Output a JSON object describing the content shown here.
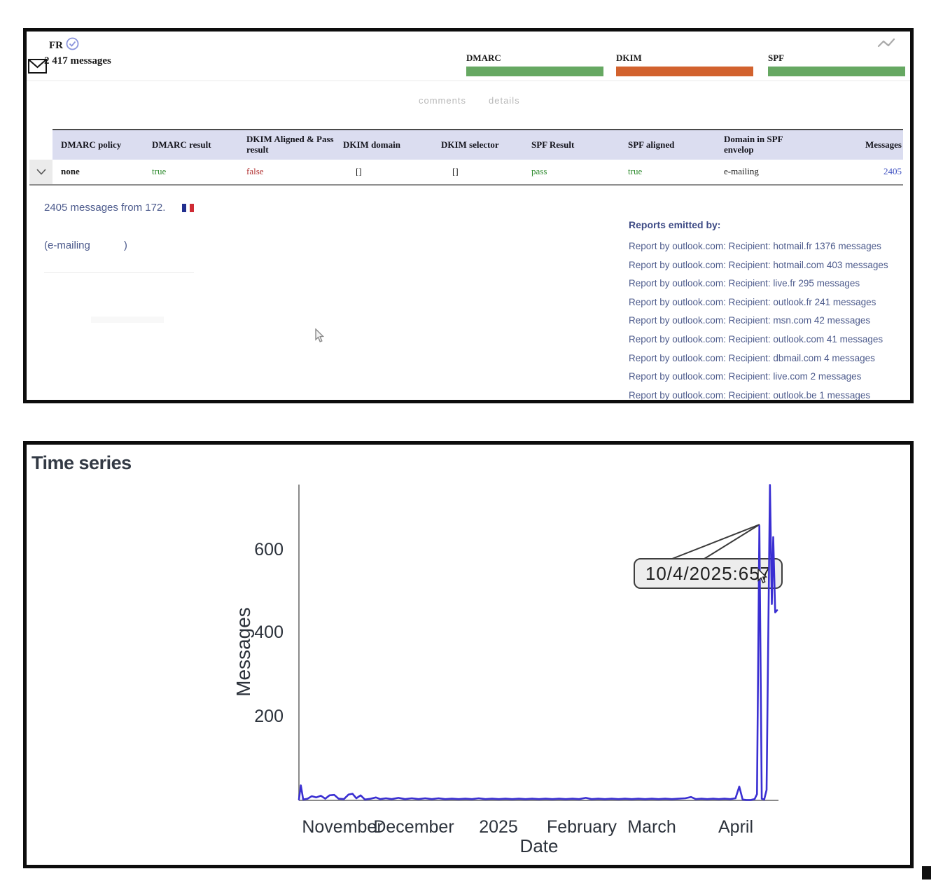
{
  "summary": {
    "country": "FR",
    "messages_total": "2 417 messages",
    "auth_bars": [
      {
        "label": "DMARC",
        "color": "#66a862"
      },
      {
        "label": "DKIM",
        "color": "#d2622e"
      },
      {
        "label": "SPF",
        "color": "#66a862"
      }
    ]
  },
  "tabs": {
    "comments": "comments",
    "details": "details"
  },
  "table": {
    "headers": [
      "DMARC policy",
      "DMARC result",
      "DKIM Aligned & Pass result",
      "DKIM domain",
      "DKIM selector",
      "SPF Result",
      "SPF aligned",
      "Domain in SPF envelop",
      "Messages"
    ],
    "row": {
      "dmarc_policy": "none",
      "dmarc_result": "true",
      "dkim_aligned_pass": "false",
      "dkim_domain": "[]",
      "dkim_selector": "[]",
      "spf_result": "pass",
      "spf_aligned": "true",
      "spf_envelope_domain": "e-mailing",
      "messages": "2405"
    }
  },
  "detail": {
    "messages_from": "2405 messages from 172.",
    "sender_prefix": "(e-mailing",
    "sender_suffix": ")",
    "reports_title": "Reports emitted by:",
    "reports": [
      "Report by outlook.com: Recipient: hotmail.fr 1376 messages",
      "Report by outlook.com: Recipient: hotmail.com 403 messages",
      "Report by outlook.com: Recipient: live.fr 295 messages",
      "Report by outlook.com: Recipient: outlook.fr 241 messages",
      "Report by outlook.com: Recipient: msn.com 42 messages",
      "Report by outlook.com: Recipient: outlook.com 41 messages",
      "Report by outlook.com: Recipient: dbmail.com 4 messages",
      "Report by outlook.com: Recipient: live.com 2 messages",
      "Report by outlook.com: Recipient: outlook.be 1 messages"
    ]
  },
  "colors": {
    "pass_green": "#2e8b2e",
    "fail_red": "#b23131",
    "bar_green": "#66a862",
    "bar_orange": "#d2622e",
    "link_blue": "#3f51c1",
    "detail_text": "#4c5a8c",
    "header_bg": "#dbddf0",
    "line_blue": "#3a2fd2"
  },
  "chart_data": {
    "type": "line",
    "title": "Time series",
    "xlabel": "Date",
    "ylabel": "Messages",
    "x_tick_labels": [
      "November",
      "December",
      "2025",
      "February",
      "March",
      "April"
    ],
    "ytick_labels": [
      "600",
      "400",
      "200"
    ],
    "yticks": [
      600,
      400,
      200
    ],
    "ylim": [
      0,
      760
    ],
    "grid": false,
    "legend": "none",
    "line_color": "#3a2fd2",
    "tooltip": {
      "text": "10/4/2025:657",
      "date": "10/4/2025",
      "value": 657
    },
    "points": [
      [
        0.0,
        2
      ],
      [
        0.004,
        36
      ],
      [
        0.009,
        2
      ],
      [
        0.018,
        4
      ],
      [
        0.027,
        10
      ],
      [
        0.036,
        7
      ],
      [
        0.046,
        11
      ],
      [
        0.055,
        4
      ],
      [
        0.064,
        12
      ],
      [
        0.074,
        13
      ],
      [
        0.083,
        4
      ],
      [
        0.094,
        3
      ],
      [
        0.104,
        14
      ],
      [
        0.112,
        16
      ],
      [
        0.12,
        5
      ],
      [
        0.129,
        12
      ],
      [
        0.138,
        2
      ],
      [
        0.15,
        4
      ],
      [
        0.161,
        7
      ],
      [
        0.17,
        3
      ],
      [
        0.182,
        5
      ],
      [
        0.194,
        3
      ],
      [
        0.208,
        6
      ],
      [
        0.222,
        3
      ],
      [
        0.236,
        5
      ],
      [
        0.25,
        3
      ],
      [
        0.264,
        5
      ],
      [
        0.278,
        3
      ],
      [
        0.292,
        5
      ],
      [
        0.306,
        3
      ],
      [
        0.32,
        4
      ],
      [
        0.334,
        3
      ],
      [
        0.348,
        4
      ],
      [
        0.362,
        3
      ],
      [
        0.376,
        5
      ],
      [
        0.39,
        3
      ],
      [
        0.404,
        4
      ],
      [
        0.418,
        3
      ],
      [
        0.432,
        4
      ],
      [
        0.446,
        3
      ],
      [
        0.46,
        4
      ],
      [
        0.474,
        3
      ],
      [
        0.488,
        4
      ],
      [
        0.502,
        3
      ],
      [
        0.516,
        4
      ],
      [
        0.53,
        3
      ],
      [
        0.544,
        4
      ],
      [
        0.558,
        3
      ],
      [
        0.572,
        4
      ],
      [
        0.586,
        3
      ],
      [
        0.6,
        6
      ],
      [
        0.612,
        3
      ],
      [
        0.626,
        4
      ],
      [
        0.64,
        3
      ],
      [
        0.654,
        4
      ],
      [
        0.668,
        3
      ],
      [
        0.682,
        4
      ],
      [
        0.696,
        3
      ],
      [
        0.71,
        4
      ],
      [
        0.724,
        3
      ],
      [
        0.738,
        4
      ],
      [
        0.752,
        3
      ],
      [
        0.766,
        4
      ],
      [
        0.78,
        3
      ],
      [
        0.794,
        4
      ],
      [
        0.808,
        5
      ],
      [
        0.82,
        8
      ],
      [
        0.83,
        3
      ],
      [
        0.842,
        4
      ],
      [
        0.854,
        3
      ],
      [
        0.866,
        4
      ],
      [
        0.878,
        3
      ],
      [
        0.89,
        4
      ],
      [
        0.902,
        3
      ],
      [
        0.913,
        5
      ],
      [
        0.921,
        33
      ],
      [
        0.928,
        2
      ],
      [
        0.936,
        1
      ],
      [
        0.945,
        1
      ],
      [
        0.953,
        3
      ],
      [
        0.958,
        15
      ],
      [
        0.963,
        657
      ],
      [
        0.968,
        4
      ],
      [
        0.973,
        2
      ],
      [
        0.978,
        25
      ],
      [
        0.985,
        755
      ],
      [
        0.989,
        470
      ],
      [
        0.992,
        630
      ],
      [
        0.996,
        450
      ],
      [
        1.0,
        455
      ]
    ]
  }
}
